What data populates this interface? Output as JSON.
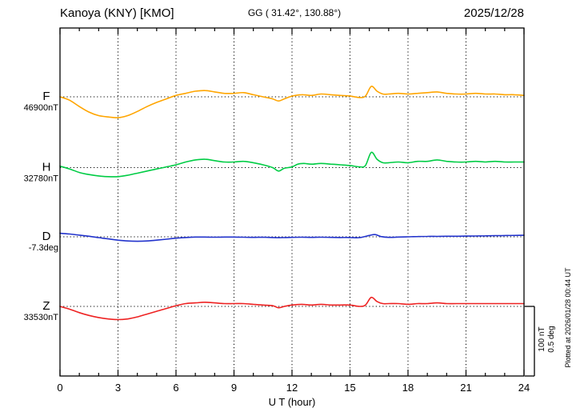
{
  "header": {
    "station": "Kanoya (KNY)  [KMO]",
    "coords": "GG ( 31.42°, 130.88°)",
    "date": "2025/12/28"
  },
  "axis": {
    "xlabel": "U T (hour)",
    "xmin": 0,
    "xmax": 24,
    "major_ticks": [
      0,
      3,
      6,
      9,
      12,
      15,
      18,
      21,
      24
    ],
    "minor_step": 1,
    "grid_hours": [
      3,
      6,
      9,
      12,
      15,
      18,
      21
    ]
  },
  "scale_bar": {
    "line1": "100 nT",
    "line2": "0.5 deg",
    "nT_per_bar": 100,
    "deg_per_bar": 0.5
  },
  "plot_note": "Plotted at 2026/01/28 00:44 UT",
  "chart_data": {
    "type": "line",
    "title": "Kanoya (KNY) [KMO] geomagnetic one-day magnetogram 2025/12/28",
    "xlabel": "U T (hour)",
    "x_range": [
      0,
      24
    ],
    "grid": "dotted vertical lines every 3 h; dotted horizontal baseline per component",
    "legend_position": "left-of-axis component labels",
    "series": [
      {
        "name": "F",
        "unit": "nT",
        "color": "#FFA500",
        "baseline_value": 46900,
        "baseline_label": "46900nT",
        "points_hour_offset": [
          [
            0,
            0
          ],
          [
            0.5,
            -5
          ],
          [
            1,
            -14
          ],
          [
            1.5,
            -22
          ],
          [
            2,
            -27
          ],
          [
            2.5,
            -29
          ],
          [
            3,
            -30
          ],
          [
            3.5,
            -27
          ],
          [
            4,
            -21
          ],
          [
            4.5,
            -14
          ],
          [
            5,
            -8
          ],
          [
            5.5,
            -3
          ],
          [
            6,
            2
          ],
          [
            6.5,
            5
          ],
          [
            7,
            8
          ],
          [
            7.5,
            9
          ],
          [
            8,
            7
          ],
          [
            8.5,
            5
          ],
          [
            9,
            5
          ],
          [
            9.5,
            6
          ],
          [
            10,
            3
          ],
          [
            10.5,
            0
          ],
          [
            11,
            -3
          ],
          [
            11.3,
            -6
          ],
          [
            11.6,
            -3
          ],
          [
            12,
            1
          ],
          [
            12.5,
            3
          ],
          [
            13,
            2
          ],
          [
            13.5,
            4
          ],
          [
            14,
            3
          ],
          [
            14.5,
            2
          ],
          [
            15,
            1
          ],
          [
            15.5,
            -1
          ],
          [
            15.8,
            1
          ],
          [
            16.1,
            15
          ],
          [
            16.4,
            8
          ],
          [
            16.7,
            4
          ],
          [
            17,
            4
          ],
          [
            17.5,
            5
          ],
          [
            18,
            4
          ],
          [
            18.5,
            5
          ],
          [
            19,
            6
          ],
          [
            19.5,
            7
          ],
          [
            20,
            5
          ],
          [
            20.5,
            4
          ],
          [
            21,
            4
          ],
          [
            21.5,
            5
          ],
          [
            22,
            4
          ],
          [
            22.5,
            4
          ],
          [
            23,
            3
          ],
          [
            23.5,
            3
          ],
          [
            24,
            2
          ]
        ]
      },
      {
        "name": "H",
        "unit": "nT",
        "color": "#00CC44",
        "baseline_value": 32780,
        "baseline_label": "32780nT",
        "points_hour_offset": [
          [
            0,
            2
          ],
          [
            0.5,
            -2
          ],
          [
            1,
            -7
          ],
          [
            1.5,
            -10
          ],
          [
            2,
            -12
          ],
          [
            2.5,
            -13
          ],
          [
            3,
            -13
          ],
          [
            3.5,
            -11
          ],
          [
            4,
            -8
          ],
          [
            4.5,
            -5
          ],
          [
            5,
            -2
          ],
          [
            5.5,
            1
          ],
          [
            6,
            4
          ],
          [
            6.5,
            8
          ],
          [
            7,
            11
          ],
          [
            7.5,
            12
          ],
          [
            8,
            10
          ],
          [
            8.5,
            8
          ],
          [
            9,
            8
          ],
          [
            9.5,
            9
          ],
          [
            10,
            7
          ],
          [
            10.5,
            4
          ],
          [
            11,
            0
          ],
          [
            11.3,
            -5
          ],
          [
            11.6,
            -1
          ],
          [
            12,
            1
          ],
          [
            12.3,
            5
          ],
          [
            12.6,
            6
          ],
          [
            13,
            5
          ],
          [
            13.5,
            6
          ],
          [
            14,
            5
          ],
          [
            14.5,
            4
          ],
          [
            15,
            3
          ],
          [
            15.5,
            1
          ],
          [
            15.8,
            3
          ],
          [
            16.1,
            22
          ],
          [
            16.4,
            12
          ],
          [
            16.7,
            7
          ],
          [
            17,
            7
          ],
          [
            17.5,
            8
          ],
          [
            18,
            7
          ],
          [
            18.5,
            9
          ],
          [
            19,
            9
          ],
          [
            19.5,
            11
          ],
          [
            20,
            9
          ],
          [
            20.5,
            8
          ],
          [
            21,
            8
          ],
          [
            21.5,
            9
          ],
          [
            22,
            8
          ],
          [
            22.5,
            9
          ],
          [
            23,
            8
          ],
          [
            23.5,
            8
          ],
          [
            24,
            8
          ]
        ]
      },
      {
        "name": "D",
        "unit": "deg",
        "color": "#2233CC",
        "baseline_value": -7.3,
        "baseline_label": "-7.3deg",
        "points_hour_offset": [
          [
            0,
            0.025
          ],
          [
            0.5,
            0.02
          ],
          [
            1,
            0.012
          ],
          [
            1.5,
            0.004
          ],
          [
            2,
            -0.006
          ],
          [
            2.5,
            -0.015
          ],
          [
            3,
            -0.024
          ],
          [
            3.5,
            -0.03
          ],
          [
            4,
            -0.032
          ],
          [
            4.5,
            -0.03
          ],
          [
            5,
            -0.024
          ],
          [
            5.5,
            -0.017
          ],
          [
            6,
            -0.01
          ],
          [
            6.5,
            -0.005
          ],
          [
            7,
            -0.002
          ],
          [
            7.5,
            -0.002
          ],
          [
            8,
            -0.003
          ],
          [
            8.5,
            -0.002
          ],
          [
            9,
            -0.002
          ],
          [
            9.5,
            -0.003
          ],
          [
            10,
            -0.004
          ],
          [
            10.5,
            -0.003
          ],
          [
            11,
            -0.005
          ],
          [
            11.5,
            -0.006
          ],
          [
            12,
            -0.004
          ],
          [
            12.5,
            -0.003
          ],
          [
            13,
            -0.004
          ],
          [
            13.5,
            -0.003
          ],
          [
            14,
            -0.004
          ],
          [
            14.5,
            -0.005
          ],
          [
            15,
            -0.005
          ],
          [
            15.5,
            -0.006
          ],
          [
            16,
            0.01
          ],
          [
            16.3,
            0.016
          ],
          [
            16.6,
            0.002
          ],
          [
            17,
            -0.004
          ],
          [
            17.5,
            -0.002
          ],
          [
            18,
            0
          ],
          [
            18.5,
            0.002
          ],
          [
            19,
            0.003
          ],
          [
            19.5,
            0.003
          ],
          [
            20,
            0.004
          ],
          [
            20.5,
            0.004
          ],
          [
            21,
            0.005
          ],
          [
            21.5,
            0.006
          ],
          [
            22,
            0.007
          ],
          [
            22.5,
            0.008
          ],
          [
            23,
            0.009
          ],
          [
            23.5,
            0.01
          ],
          [
            24,
            0.011
          ]
        ]
      },
      {
        "name": "Z",
        "unit": "nT",
        "color": "#EE2222",
        "baseline_value": 33530,
        "baseline_label": "33530nT",
        "points_hour_offset": [
          [
            0,
            0
          ],
          [
            0.5,
            -4
          ],
          [
            1,
            -9
          ],
          [
            1.5,
            -13
          ],
          [
            2,
            -16
          ],
          [
            2.5,
            -18
          ],
          [
            3,
            -19
          ],
          [
            3.5,
            -18
          ],
          [
            4,
            -15
          ],
          [
            4.5,
            -11
          ],
          [
            5,
            -7
          ],
          [
            5.5,
            -3
          ],
          [
            6,
            1
          ],
          [
            6.5,
            4
          ],
          [
            7,
            5
          ],
          [
            7.5,
            6
          ],
          [
            8,
            5
          ],
          [
            8.5,
            4
          ],
          [
            9,
            4
          ],
          [
            9.5,
            4
          ],
          [
            10,
            3
          ],
          [
            10.5,
            2
          ],
          [
            11,
            1
          ],
          [
            11.3,
            -2
          ],
          [
            11.6,
            0
          ],
          [
            12,
            2
          ],
          [
            12.5,
            3
          ],
          [
            13,
            2
          ],
          [
            13.5,
            3
          ],
          [
            14,
            2
          ],
          [
            14.5,
            2
          ],
          [
            15,
            2
          ],
          [
            15.5,
            0
          ],
          [
            15.8,
            2
          ],
          [
            16.1,
            13
          ],
          [
            16.4,
            7
          ],
          [
            16.7,
            4
          ],
          [
            17,
            4
          ],
          [
            17.5,
            4
          ],
          [
            18,
            3
          ],
          [
            18.5,
            4
          ],
          [
            19,
            4
          ],
          [
            19.5,
            5
          ],
          [
            20,
            4
          ],
          [
            20.5,
            4
          ],
          [
            21,
            4
          ],
          [
            21.5,
            4
          ],
          [
            22,
            4
          ],
          [
            22.5,
            4
          ],
          [
            23,
            4
          ],
          [
            23.5,
            4
          ],
          [
            24,
            4
          ]
        ]
      }
    ]
  }
}
